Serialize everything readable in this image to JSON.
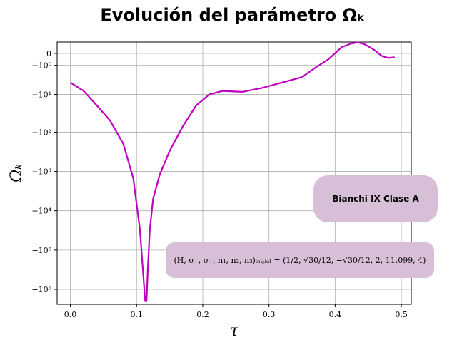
{
  "chart_data": {
    "type": "line",
    "title": "Evolución del parámetro Ωₖ",
    "xlabel": "τ",
    "ylabel": "Ωₖ",
    "xlim": [
      -0.02,
      0.515
    ],
    "yscale": "symlog-negative",
    "x_ticks": [
      "0.0",
      "0.1",
      "0.2",
      "0.3",
      "0.4",
      "0.5"
    ],
    "y_ticks": [
      "0",
      "−10⁰",
      "−10¹",
      "−10²",
      "−10³",
      "−10⁴",
      "−10⁵",
      "−10⁶"
    ],
    "grid": true,
    "series": [
      {
        "color": "#bf00bf",
        "x": [
          0.0,
          0.02,
          0.04,
          0.06,
          0.08,
          0.095,
          0.105,
          0.11,
          0.113,
          0.115,
          0.117,
          0.12,
          0.125,
          0.135,
          0.15,
          0.17,
          0.19,
          0.21,
          0.23,
          0.26,
          0.29,
          0.32,
          0.35,
          0.37,
          0.39,
          0.41,
          0.425,
          0.435,
          0.445,
          0.46,
          0.47,
          0.48,
          0.49
        ],
        "y": [
          -4.5,
          -8,
          -20,
          -50,
          -200,
          -1500,
          -30000,
          -400000,
          -3000000,
          -2500000,
          -300000,
          -30000,
          -5000,
          -1200,
          -300,
          -70,
          -20,
          -10,
          -8,
          -8.5,
          -6.5,
          -4.5,
          -3,
          -1.3,
          -0.4,
          0.45,
          0.8,
          0.9,
          0.7,
          0.2,
          -0.15,
          -0.3,
          -0.25
        ]
      }
    ],
    "annotations": [
      "Bianchi IX Clase A",
      "(H, σ₊, σ₋, n₁, n₂, n₃)ᵢₙᵢ꜀ᵢₐₗ = (1/2, √30/12, −√30/12, 2, 11.099, 4)"
    ]
  }
}
